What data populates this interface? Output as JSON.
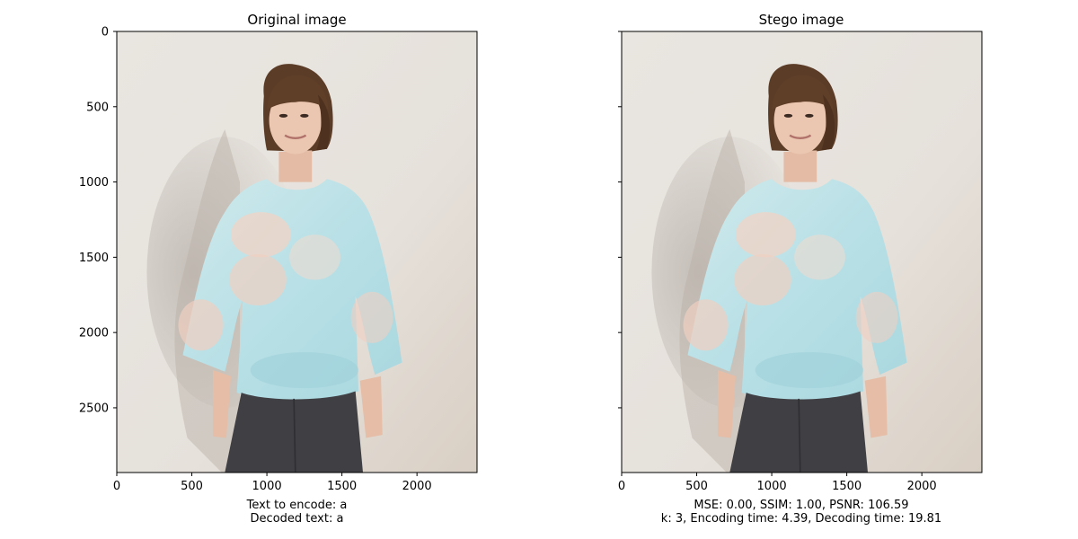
{
  "chart_data": [
    {
      "type": "image",
      "title": "Original image",
      "xlabel_lines": [
        "Text to encode: a",
        "Decoded text: a"
      ],
      "xlim": [
        0,
        2400
      ],
      "ylim": [
        2930,
        0
      ],
      "xticks": [
        0,
        500,
        1000,
        1500,
        2000
      ],
      "yticks": [
        0,
        500,
        1000,
        1500,
        2000,
        2500
      ],
      "show_ytick_labels": true
    },
    {
      "type": "image",
      "title": "Stego image",
      "xlabel_lines": [
        "MSE: 0.00, SSIM: 1.00, PSNR: 106.59",
        "k: 3, Encoding time: 4.39, Decoding time: 19.81"
      ],
      "xlim": [
        0,
        2400
      ],
      "ylim": [
        2930,
        0
      ],
      "xticks": [
        0,
        500,
        1000,
        1500,
        2000
      ],
      "yticks": [
        0,
        500,
        1000,
        1500,
        2000,
        2500
      ],
      "show_ytick_labels": false
    }
  ],
  "colors": {
    "wall": "#e6e2dc",
    "hair": "#5a3b26",
    "skin": "#e8c2ad",
    "shirt": "#bfe3e6",
    "shirt_flower": "#f2cfc0",
    "jeans": "#3f3f42",
    "shadow": "#bdb6ae"
  }
}
